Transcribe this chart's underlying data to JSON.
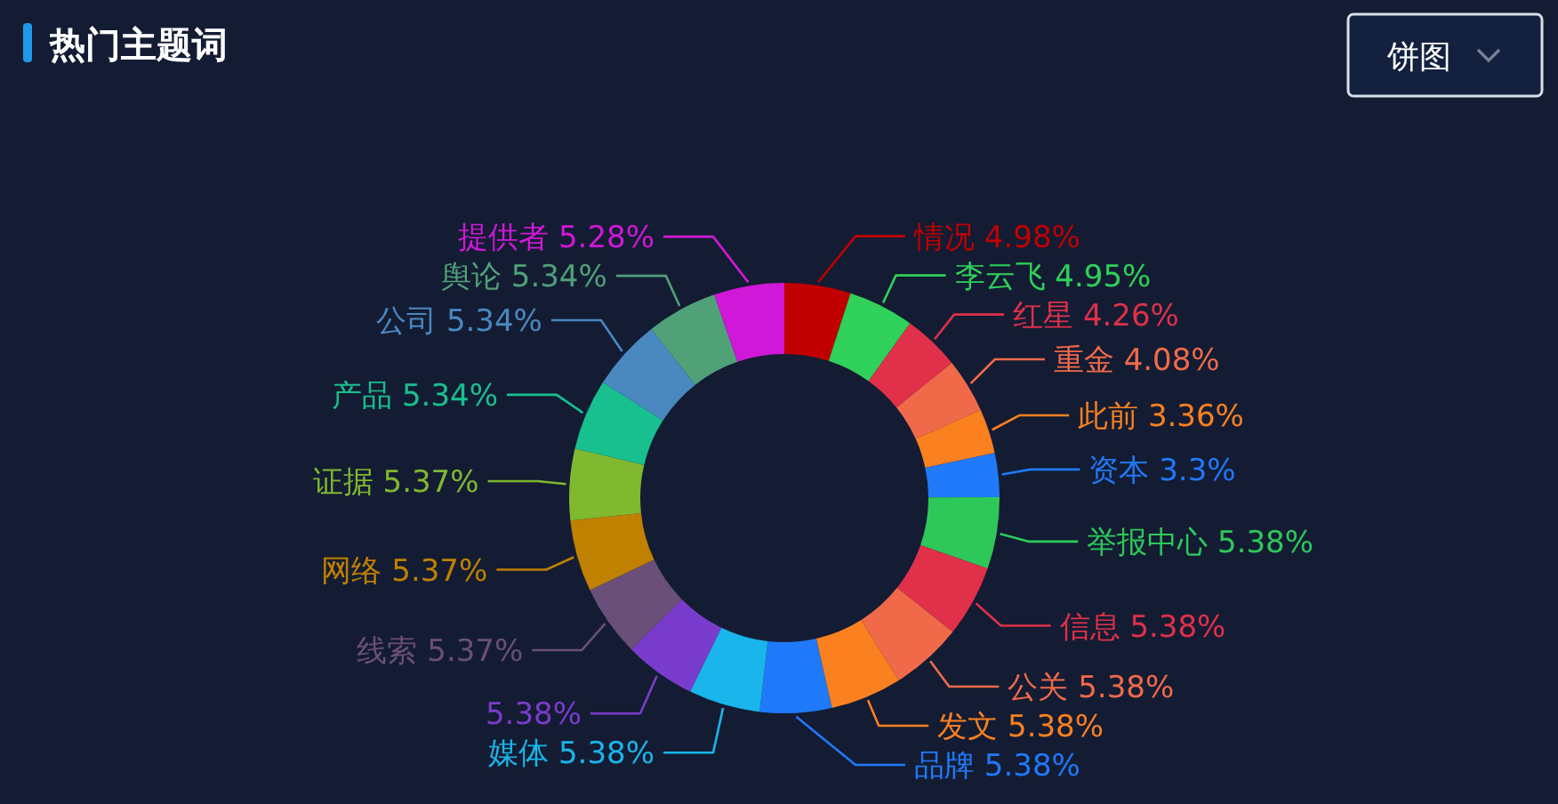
{
  "chart_data": {
    "type": "donut",
    "title": "热门主题词",
    "annotations": [
      "饼图"
    ],
    "categories": [
      "情况",
      "李云飞",
      "红星",
      "重金",
      "此前",
      "资本",
      "举报中心",
      "信息",
      "公关",
      "发文",
      "品牌",
      "媒体",
      null,
      "线索",
      "网络",
      "证据",
      "产品",
      "公司",
      "舆论",
      "提供者"
    ],
    "values": [
      4.98,
      4.95,
      4.26,
      4.08,
      3.36,
      3.3,
      5.38,
      5.38,
      5.38,
      5.38,
      5.38,
      5.38,
      5.38,
      5.37,
      5.37,
      5.37,
      5.34,
      5.34,
      5.34,
      5.28
    ],
    "value_labels": [
      "4.98%",
      "4.95%",
      "4.26%",
      "4.08%",
      "3.36%",
      "3.3%",
      "5.38%",
      "5.38%",
      "5.38%",
      "5.38%",
      "5.38%",
      "5.38%",
      "5.38%",
      "5.37%",
      "5.37%",
      "5.37%",
      "5.34%",
      "5.34%",
      "5.34%",
      "5.28%"
    ],
    "colors": [
      "#c00000",
      "#2fd15a",
      "#e0304a",
      "#f06a4a",
      "#fa8020",
      "#2079f8",
      "#2ec85a",
      "#e0304a",
      "#f06a4a",
      "#fa8020",
      "#2079f8",
      "#1ab5ea",
      "#7a3ccc",
      "#6a4f78",
      "#c08000",
      "#80b830",
      "#18c090",
      "#4a88c0",
      "#50a078",
      "#d018d8"
    ]
  }
}
